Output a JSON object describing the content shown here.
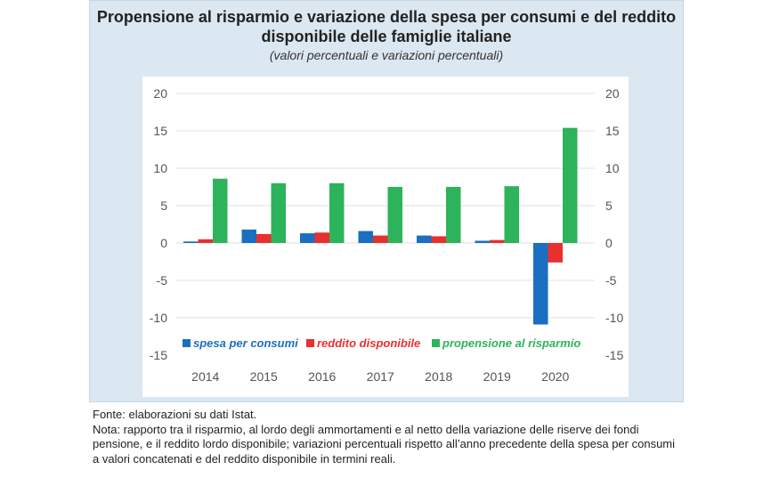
{
  "chart_data": {
    "type": "bar",
    "title": "Propensione al risparmio e variazione della spesa per consumi e del reddito disponibile delle famiglie italiane",
    "subtitle": "(valori percentuali e variazioni percentuali)",
    "categories": [
      "2014",
      "2015",
      "2016",
      "2017",
      "2018",
      "2019",
      "2020"
    ],
    "series": [
      {
        "name": "spesa per consumi",
        "color": "#1a6fc0",
        "values": [
          0.2,
          1.8,
          1.3,
          1.6,
          1.0,
          0.3,
          -10.9
        ]
      },
      {
        "name": "reddito disponibile",
        "color": "#e8302f",
        "values": [
          0.5,
          1.2,
          1.4,
          1.0,
          0.9,
          0.4,
          -2.6
        ]
      },
      {
        "name": "propensione al risparmio",
        "color": "#2db35b",
        "values": [
          8.6,
          8.0,
          8.0,
          7.5,
          7.5,
          7.6,
          15.4
        ]
      }
    ],
    "ylim": [
      -15,
      20
    ],
    "yticks": [
      "20",
      "15",
      "10",
      "5",
      "0",
      "-5",
      "-10",
      "-15"
    ],
    "legend_position": "bottom",
    "grid": true
  },
  "notes": {
    "source": "Fonte: elaborazioni su dati Istat.",
    "note": "Nota: rapporto tra il risparmio, al lordo degli ammortamenti e al netto della variazione delle riserve dei fondi pensione, e il reddito lordo disponibile; variazioni percentuali rispetto all’anno precedente della spesa per consumi a valori concatenati e del reddito disponibile in termini reali."
  }
}
